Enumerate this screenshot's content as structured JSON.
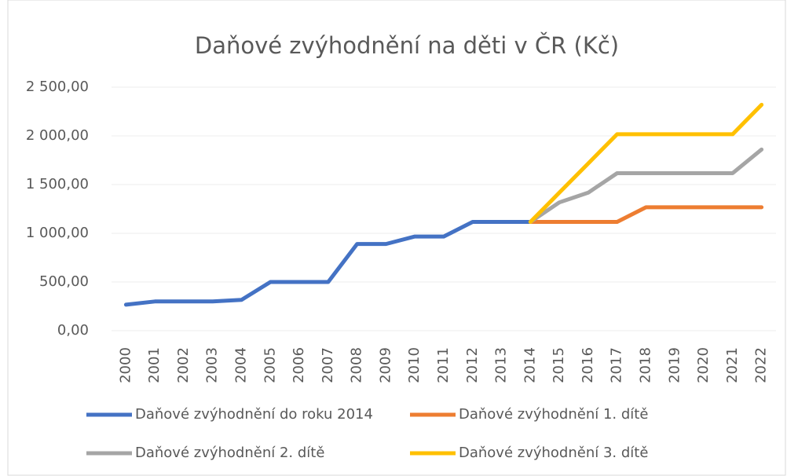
{
  "chart_data": {
    "type": "line",
    "title": "Daňové zvýhodnění  na děti v ČR (Kč)",
    "categories": [
      "2000",
      "2001",
      "2002",
      "2003",
      "2004",
      "2005",
      "2006",
      "2007",
      "2008",
      "2009",
      "2010",
      "2011",
      "2012",
      "2013",
      "2014",
      "2015",
      "2016",
      "2017",
      "2018",
      "2019",
      "2020",
      "2021",
      "2022"
    ],
    "series": [
      {
        "name": "Daňové zvýhodnění do roku 2014",
        "color": "#4472c4",
        "values": [
          267,
          300,
          300,
          300,
          317,
          500,
          500,
          500,
          890,
          890,
          967,
          967,
          1117,
          1117,
          1117,
          null,
          null,
          null,
          null,
          null,
          null,
          null,
          null
        ]
      },
      {
        "name": "Daňové zvýhodnění 1. dítě",
        "color": "#ed7d31",
        "values": [
          null,
          null,
          null,
          null,
          null,
          null,
          null,
          null,
          null,
          null,
          null,
          null,
          null,
          null,
          1117,
          1117,
          1117,
          1117,
          1267,
          1267,
          1267,
          1267,
          1267
        ]
      },
      {
        "name": "Daňové zvýhodnění 2. dítě",
        "color": "#a5a5a5",
        "values": [
          null,
          null,
          null,
          null,
          null,
          null,
          null,
          null,
          null,
          null,
          null,
          null,
          null,
          null,
          1117,
          1317,
          1417,
          1617,
          1617,
          1617,
          1617,
          1617,
          1860
        ]
      },
      {
        "name": "Daňové zvýhodnění 3. dítě",
        "color": "#ffc000",
        "values": [
          null,
          null,
          null,
          null,
          null,
          null,
          null,
          null,
          null,
          null,
          null,
          null,
          null,
          null,
          1117,
          1417,
          1717,
          2017,
          2017,
          2017,
          2017,
          2017,
          2320
        ]
      }
    ],
    "ylim": [
      0,
      2500
    ],
    "yticks": [
      {
        "value": 0,
        "label": "0,00"
      },
      {
        "value": 500,
        "label": "500,00"
      },
      {
        "value": 1000,
        "label": "1 000,00"
      },
      {
        "value": 1500,
        "label": "1 500,00"
      },
      {
        "value": 2000,
        "label": "2 000,00"
      },
      {
        "value": 2500,
        "label": "2 500,00"
      }
    ],
    "grid": true
  }
}
